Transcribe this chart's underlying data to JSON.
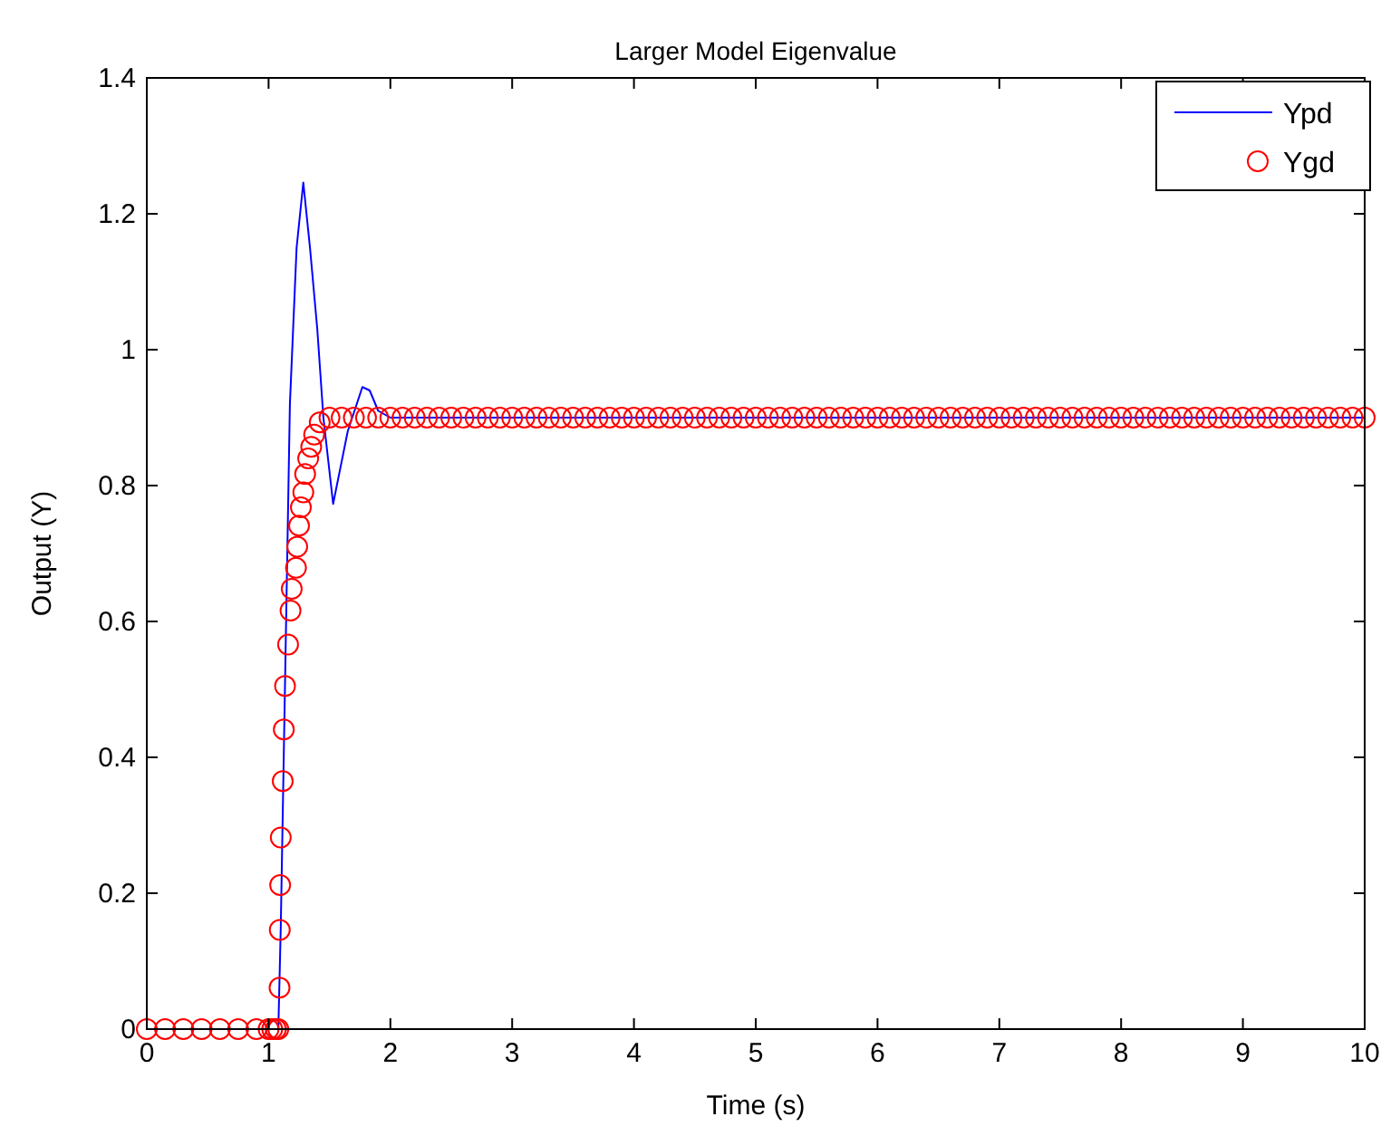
{
  "chart_data": {
    "type": "line",
    "title": "Larger Model Eigenvalue",
    "xlabel": "Time (s)",
    "ylabel": "Output (Y)",
    "xlim": [
      0,
      10
    ],
    "ylim": [
      0,
      1.4
    ],
    "xticks": [
      0,
      1,
      2,
      3,
      4,
      5,
      6,
      7,
      8,
      9,
      10
    ],
    "yticks": [
      0,
      0.2,
      0.4,
      0.6,
      0.8,
      1,
      1.2,
      1.4
    ],
    "grid": false,
    "legend": "top right",
    "series": [
      {
        "name": "Ypd",
        "color": "#0000ff",
        "marker": "none",
        "line_style": "solid",
        "x": [
          0,
          1.08,
          1.1,
          1.175,
          1.23,
          1.285,
          1.34,
          1.4,
          1.45,
          1.53,
          1.65,
          1.77,
          1.83,
          1.9,
          2.0,
          2.2,
          10
        ],
        "values": [
          0,
          0,
          0.15,
          0.92,
          1.15,
          1.246,
          1.15,
          1.03,
          0.9,
          0.773,
          0.88,
          0.945,
          0.94,
          0.91,
          0.9,
          0.9,
          0.9
        ]
      },
      {
        "name": "Ygd",
        "type": "scatter",
        "color": "#ff0000",
        "marker": "circle",
        "x": [
          0,
          0.15,
          0.3,
          0.45,
          0.6,
          0.75,
          0.9,
          1.0,
          1.03,
          1.06,
          1.08,
          1.09,
          1.092,
          1.095,
          1.1,
          1.116,
          1.125,
          1.135,
          1.16,
          1.18,
          1.19,
          1.225,
          1.235,
          1.25,
          1.265,
          1.285,
          1.3,
          1.325,
          1.35,
          1.374,
          1.42,
          1.5,
          1.6,
          1.7,
          1.8,
          1.9,
          2.0,
          2.1,
          2.2,
          2.3,
          2.4,
          2.5,
          2.6,
          2.7,
          2.8,
          2.9,
          3.0,
          3.1,
          3.2,
          3.3,
          3.4,
          3.5,
          3.6,
          3.7,
          3.8,
          3.9,
          4.0,
          4.1,
          4.2,
          4.3,
          4.4,
          4.5,
          4.6,
          4.7,
          4.8,
          4.9,
          5.0,
          5.1,
          5.2,
          5.3,
          5.4,
          5.5,
          5.6,
          5.7,
          5.8,
          5.9,
          6.0,
          6.1,
          6.2,
          6.3,
          6.4,
          6.5,
          6.6,
          6.7,
          6.8,
          6.9,
          7.0,
          7.1,
          7.2,
          7.3,
          7.4,
          7.5,
          7.6,
          7.7,
          7.8,
          7.9,
          8.0,
          8.1,
          8.2,
          8.3,
          8.4,
          8.5,
          8.6,
          8.7,
          8.8,
          8.9,
          9.0,
          9.1,
          9.2,
          9.3,
          9.4,
          9.5,
          9.6,
          9.7,
          9.8,
          9.9,
          10
        ],
        "values": [
          0,
          0,
          0,
          0,
          0,
          0,
          0,
          0,
          0,
          0,
          0,
          0.061,
          0.146,
          0.212,
          0.282,
          0.365,
          0.441,
          0.505,
          0.566,
          0.616,
          0.648,
          0.679,
          0.71,
          0.741,
          0.768,
          0.79,
          0.817,
          0.84,
          0.857,
          0.875,
          0.893,
          0.9,
          0.9,
          0.9,
          0.9,
          0.9,
          0.9,
          0.9,
          0.9,
          0.9,
          0.9,
          0.9,
          0.9,
          0.9,
          0.9,
          0.9,
          0.9,
          0.9,
          0.9,
          0.9,
          0.9,
          0.9,
          0.9,
          0.9,
          0.9,
          0.9,
          0.9,
          0.9,
          0.9,
          0.9,
          0.9,
          0.9,
          0.9,
          0.9,
          0.9,
          0.9,
          0.9,
          0.9,
          0.9,
          0.9,
          0.9,
          0.9,
          0.9,
          0.9,
          0.9,
          0.9,
          0.9,
          0.9,
          0.9,
          0.9,
          0.9,
          0.9,
          0.9,
          0.9,
          0.9,
          0.9,
          0.9,
          0.9,
          0.9,
          0.9,
          0.9,
          0.9,
          0.9,
          0.9,
          0.9,
          0.9,
          0.9,
          0.9,
          0.9,
          0.9,
          0.9,
          0.9,
          0.9,
          0.9,
          0.9,
          0.9,
          0.9,
          0.9,
          0.9,
          0.9,
          0.9,
          0.9,
          0.9,
          0.9,
          0.9,
          0.9,
          0.9
        ]
      }
    ]
  }
}
